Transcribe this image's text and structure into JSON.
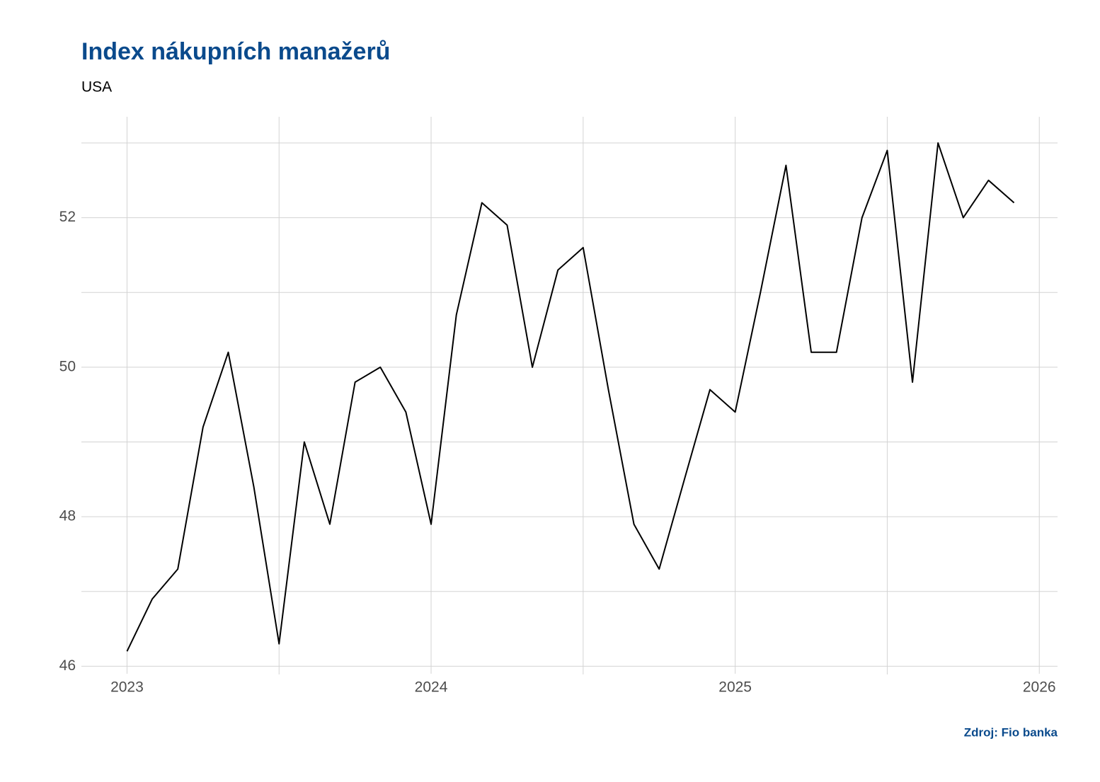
{
  "chart_data": {
    "type": "line",
    "title": "Index nákupních manažerů",
    "subtitle": "USA",
    "source": "Zdroj: Fio banka",
    "x": [
      2023.0,
      2023.083,
      2023.167,
      2023.25,
      2023.333,
      2023.417,
      2023.5,
      2023.583,
      2023.667,
      2023.75,
      2023.833,
      2023.917,
      2024.0,
      2024.083,
      2024.167,
      2024.25,
      2024.333,
      2024.417,
      2024.5,
      2024.583,
      2024.667,
      2024.75,
      2024.833,
      2024.917,
      2025.0,
      2025.083,
      2025.167,
      2025.25,
      2025.333,
      2025.417,
      2025.5,
      2025.583,
      2025.667,
      2025.75,
      2025.833,
      2025.917
    ],
    "values": [
      46.2,
      46.9,
      47.3,
      49.2,
      50.2,
      48.4,
      46.3,
      49.0,
      47.9,
      49.8,
      50.0,
      49.4,
      47.9,
      50.7,
      52.2,
      51.9,
      50.0,
      51.3,
      51.6,
      49.7,
      47.9,
      47.3,
      48.5,
      49.7,
      49.4,
      51.0,
      52.7,
      50.2,
      50.2,
      52.0,
      52.9,
      49.8,
      53.0,
      52.0,
      52.5,
      52.2
    ],
    "color": "#000000",
    "xlim": [
      2022.85,
      2026.06
    ],
    "xticks": [
      2023,
      2024,
      2025,
      2026
    ],
    "minor_xticks": [
      2023.5,
      2024.5,
      2025.5
    ],
    "ylim": [
      45.9,
      53.35
    ],
    "yticks": [
      46,
      48,
      50,
      52
    ],
    "minor_yticks": [
      47,
      49,
      51,
      53
    ],
    "grid": true
  }
}
